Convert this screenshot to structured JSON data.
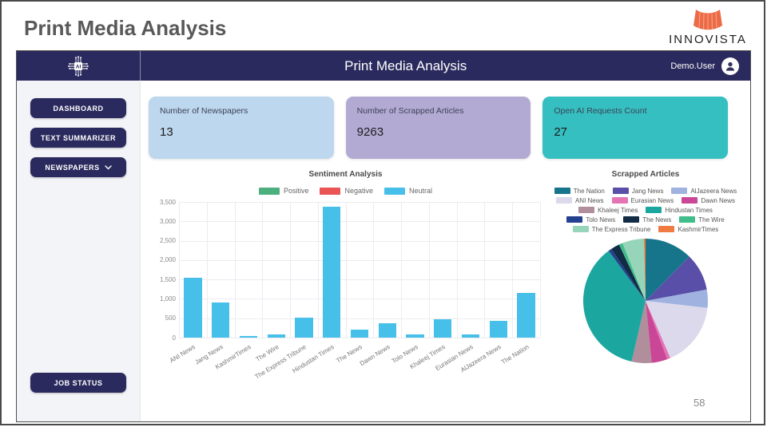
{
  "slide": {
    "title": "Print Media Analysis",
    "page_number": "58"
  },
  "brand": {
    "name": "INNOVISTA",
    "icon_color": "#ec6a45"
  },
  "topbar": {
    "title": "Print Media Analysis",
    "user": "Demo.User",
    "bg_color": "#2b2a5e"
  },
  "sidebar": {
    "items": [
      {
        "label": "DASHBOARD"
      },
      {
        "label": "TEXT SUMMARIZER"
      },
      {
        "label": "NEWSPAPERS",
        "has_dropdown": true
      }
    ],
    "bottom_item": {
      "label": "JOB STATUS"
    }
  },
  "cards": [
    {
      "label": "Number of Newspapers",
      "value": "13",
      "bg": "#bdd7ee"
    },
    {
      "label": "Number of Scrapped Articles",
      "value": "9263",
      "bg": "#b3aad3"
    },
    {
      "label": "Open AI Requests Count",
      "value": "27",
      "bg": "#35bfc0"
    }
  ],
  "chart_data": [
    {
      "type": "bar",
      "title": "Sentiment Analysis",
      "legend": [
        {
          "name": "Positive",
          "color": "#4caf7d"
        },
        {
          "name": "Negative",
          "color": "#ea5455"
        },
        {
          "name": "Neutral",
          "color": "#47c0e9"
        }
      ],
      "legend_position": "top",
      "grid": true,
      "categories": [
        "ANI News",
        "Jang News",
        "KashmirTimes",
        "The Wire",
        "The Express Tribune",
        "Hindustan Times",
        "The News",
        "Dawn News",
        "Tolo News",
        "Khaleej Times",
        "Eurasian News",
        "AlJazeera News",
        "The Nation"
      ],
      "series": [
        {
          "name": "Neutral",
          "color": "#47c0e9",
          "values": [
            1550,
            900,
            40,
            90,
            520,
            3370,
            210,
            380,
            80,
            480,
            80,
            440,
            1150
          ]
        }
      ],
      "ylim": [
        0,
        3500
      ],
      "ytick_step": 500,
      "xlabel": "",
      "ylabel": ""
    },
    {
      "type": "pie",
      "title": "Scrapped Articles",
      "legend_position": "top",
      "slices": [
        {
          "name": "The Nation",
          "value": 1150,
          "color": "#16758a"
        },
        {
          "name": "Jang News",
          "value": 900,
          "color": "#5a4fa8"
        },
        {
          "name": "AlJazeera News",
          "value": 440,
          "color": "#9fb2e0"
        },
        {
          "name": "ANI News",
          "value": 1550,
          "color": "#dcd9ec"
        },
        {
          "name": "Eurasian News",
          "value": 80,
          "color": "#e574b5"
        },
        {
          "name": "Dawn News",
          "value": 380,
          "color": "#c94796"
        },
        {
          "name": "Khaleej Times",
          "value": 480,
          "color": "#b08e9b"
        },
        {
          "name": "Hindustan Times",
          "value": 3370,
          "color": "#1ca6a0"
        },
        {
          "name": "Tolo News",
          "value": 80,
          "color": "#24418f"
        },
        {
          "name": "The News",
          "value": 210,
          "color": "#112c44"
        },
        {
          "name": "The Wire",
          "value": 90,
          "color": "#41bd8b"
        },
        {
          "name": "The Express Tribune",
          "value": 520,
          "color": "#96d5b9"
        },
        {
          "name": "KashmirTimes",
          "value": 40,
          "color": "#ef7b42"
        }
      ]
    }
  ]
}
